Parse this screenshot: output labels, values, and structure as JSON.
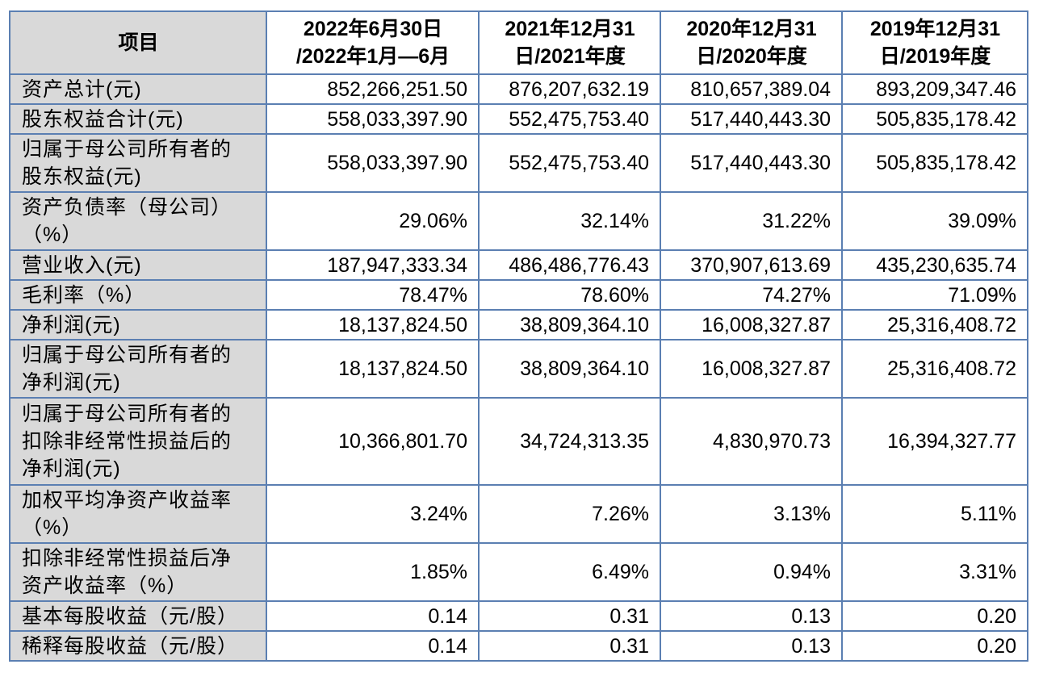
{
  "header": {
    "item": "项目",
    "periods": [
      {
        "line1": "2022年6月30日",
        "line2": "/2022年1月—6月"
      },
      {
        "line1": "2021年12月31",
        "line2": "日/2021年度"
      },
      {
        "line1": "2020年12月31",
        "line2": "日/2020年度"
      },
      {
        "line1": "2019年12月31",
        "line2": "日/2019年度"
      }
    ]
  },
  "rows": [
    {
      "label": [
        "资产总计(元)"
      ],
      "values": [
        "852,266,251.50",
        "876,207,632.19",
        "810,657,389.04",
        "893,209,347.46"
      ]
    },
    {
      "label": [
        "股东权益合计(元)"
      ],
      "values": [
        "558,033,397.90",
        "552,475,753.40",
        "517,440,443.30",
        "505,835,178.42"
      ]
    },
    {
      "label": [
        "归属于母公司所有者的",
        "股东权益(元)"
      ],
      "values": [
        "558,033,397.90",
        "552,475,753.40",
        "517,440,443.30",
        "505,835,178.42"
      ]
    },
    {
      "label": [
        "资产负债率（母公司）",
        "（%）"
      ],
      "values": [
        "29.06%",
        "32.14%",
        "31.22%",
        "39.09%"
      ]
    },
    {
      "label": [
        "营业收入(元)"
      ],
      "values": [
        "187,947,333.34",
        "486,486,776.43",
        "370,907,613.69",
        "435,230,635.74"
      ]
    },
    {
      "label": [
        "毛利率（%）"
      ],
      "values": [
        "78.47%",
        "78.60%",
        "74.27%",
        "71.09%"
      ]
    },
    {
      "label": [
        "净利润(元)"
      ],
      "values": [
        "18,137,824.50",
        "38,809,364.10",
        "16,008,327.87",
        "25,316,408.72"
      ]
    },
    {
      "label": [
        "归属于母公司所有者的",
        "净利润(元)"
      ],
      "values": [
        "18,137,824.50",
        "38,809,364.10",
        "16,008,327.87",
        "25,316,408.72"
      ]
    },
    {
      "label": [
        "归属于母公司所有者的",
        "扣除非经常性损益后的",
        "净利润(元)"
      ],
      "values": [
        "10,366,801.70",
        "34,724,313.35",
        "4,830,970.73",
        "16,394,327.77"
      ]
    },
    {
      "label": [
        "加权平均净资产收益率",
        "（%）"
      ],
      "values": [
        "3.24%",
        "7.26%",
        "3.13%",
        "5.11%"
      ]
    },
    {
      "label": [
        "扣除非经常性损益后净",
        "资产收益率（%）"
      ],
      "values": [
        "1.85%",
        "6.49%",
        "0.94%",
        "3.31%"
      ]
    },
    {
      "label": [
        "基本每股收益（元/股）"
      ],
      "values": [
        "0.14",
        "0.31",
        "0.13",
        "0.20"
      ]
    },
    {
      "label": [
        "稀释每股收益（元/股）"
      ],
      "values": [
        "0.14",
        "0.31",
        "0.13",
        "0.20"
      ]
    }
  ]
}
